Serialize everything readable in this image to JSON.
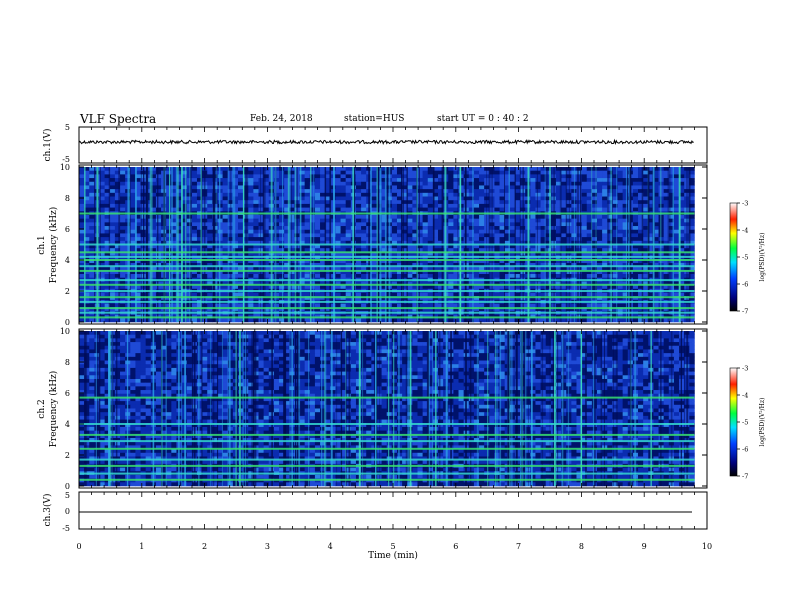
{
  "header": {
    "title": "VLF Spectra",
    "date": "Feb. 24, 2018",
    "station": "station=HUS",
    "start": "start  UT =   0 : 40 : 2"
  },
  "chart_data": [
    {
      "type": "line",
      "panel": "ch1-waveform",
      "ylabel": "ch.1(V)",
      "ylim": [
        -5,
        5
      ],
      "yticks": [
        "5",
        "-5"
      ],
      "x": [
        0,
        9.8
      ],
      "y": [
        0,
        0
      ],
      "note_visible": "dense noise trace near 0 V spanning full time range"
    },
    {
      "type": "heatmap",
      "panel": "ch1-spectrogram",
      "ylabel_top": "ch.1",
      "ylabel": "Frequency  (kHz)",
      "ylim": [
        0,
        10
      ],
      "yticks": [
        "0",
        "2",
        "4",
        "6",
        "8",
        "10"
      ],
      "xlim": [
        0,
        9.8
      ],
      "horizontal_lines_khz": [
        0.3,
        0.6,
        0.9,
        1.3,
        1.6,
        2.0,
        2.4,
        2.7,
        3.3,
        3.6,
        4.0,
        4.2,
        4.5,
        5.0,
        7.0
      ],
      "colorbar": {
        "label": "log(PSD)(V²/Hz)",
        "ticks": [
          "-3",
          "-4",
          "-5",
          "-6",
          "-7"
        ],
        "range": [
          -7,
          -3
        ]
      }
    },
    {
      "type": "heatmap",
      "panel": "ch2-spectrogram",
      "ylabel_top": "ch.2",
      "ylabel": "Frequency  (kHz)",
      "ylim": [
        0,
        10
      ],
      "yticks": [
        "0",
        "2",
        "4",
        "6",
        "8",
        "10"
      ],
      "xlim": [
        0,
        9.8
      ],
      "horizontal_lines_khz": [
        0.4,
        0.8,
        1.3,
        1.7,
        2.4,
        2.9,
        3.3,
        4.0,
        5.7
      ],
      "colorbar": {
        "label": "log(PSD)(V²/Hz)",
        "ticks": [
          "-3",
          "-4",
          "-5",
          "-6",
          "-7"
        ],
        "range": [
          -7,
          -3
        ]
      }
    },
    {
      "type": "line",
      "panel": "ch3-waveform",
      "ylabel": "ch.3(V)",
      "ylim": [
        -5,
        5
      ],
      "yticks": [
        "5",
        "0",
        "-5"
      ],
      "x": [
        0,
        9.8
      ],
      "y": [
        0,
        0
      ],
      "xlabel": "Time  (min)",
      "xticks": [
        "0",
        "1",
        "2",
        "3",
        "4",
        "5",
        "6",
        "7",
        "8",
        "9",
        "10"
      ],
      "xlim": [
        0,
        10
      ]
    }
  ],
  "colors": {
    "spec_dark": "#000b5a",
    "spec_blue": "#1f3fcc",
    "spec_cyan": "#30d0d8",
    "spec_green": "#38e060"
  }
}
